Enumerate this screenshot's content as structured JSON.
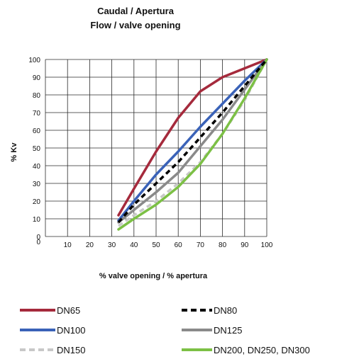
{
  "chart_data": {
    "type": "line",
    "title": "Caudal / Apertura",
    "subtitle": "Flow / valve opening",
    "xlabel": "% valve opening / % apertura",
    "ylabel": "% Kv",
    "xlim": [
      0,
      100
    ],
    "ylim": [
      0,
      100
    ],
    "x_ticks": [
      0,
      10,
      20,
      30,
      40,
      50,
      60,
      70,
      80,
      90,
      100
    ],
    "y_ticks": [
      0,
      10,
      20,
      30,
      40,
      50,
      60,
      70,
      80,
      90,
      100
    ],
    "grid": true,
    "legend_position": "bottom",
    "series": [
      {
        "name": "DN65",
        "color": "#a52a3c",
        "style": "solid",
        "x": [
          33,
          40,
          50,
          60,
          70,
          80,
          90,
          100
        ],
        "y": [
          12,
          27,
          48,
          67,
          82,
          90,
          95,
          100
        ]
      },
      {
        "name": "DN80",
        "color": "#000000",
        "style": "dashed",
        "x": [
          33,
          40,
          50,
          60,
          70,
          80,
          90,
          100
        ],
        "y": [
          8,
          18,
          30,
          42,
          56,
          70,
          85,
          100
        ]
      },
      {
        "name": "DN100",
        "color": "#3a62b8",
        "style": "solid",
        "x": [
          33,
          40,
          50,
          60,
          70,
          80,
          90,
          100
        ],
        "y": [
          9,
          20,
          35,
          48,
          62,
          75,
          88,
          100
        ]
      },
      {
        "name": "DN125",
        "color": "#8a8a8a",
        "style": "solid",
        "x": [
          33,
          40,
          50,
          60,
          70,
          80,
          90,
          100
        ],
        "y": [
          8,
          15,
          25,
          36,
          51,
          66,
          83,
          100
        ]
      },
      {
        "name": "DN150",
        "color": "#c8c8c8",
        "style": "dashed",
        "x": [
          33,
          40,
          50,
          60,
          70,
          80,
          90,
          100
        ],
        "y": [
          6,
          12,
          20,
          30,
          42,
          58,
          77,
          100
        ]
      },
      {
        "name": "DN200, DN250, DN300",
        "color": "#7cc045",
        "style": "solid",
        "x": [
          33,
          40,
          50,
          60,
          70,
          80,
          90,
          100
        ],
        "y": [
          4,
          10,
          18,
          28,
          41,
          58,
          78,
          100
        ]
      }
    ]
  }
}
